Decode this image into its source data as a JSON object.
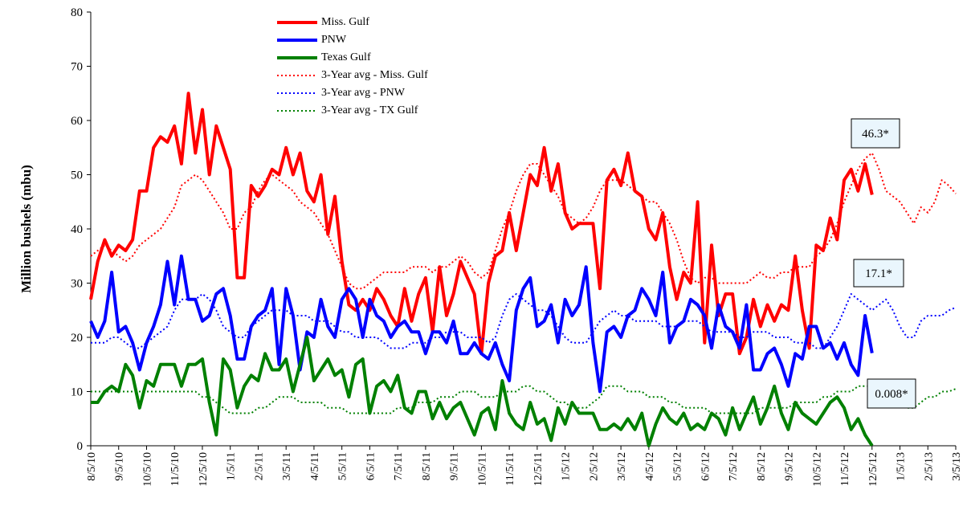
{
  "chart_data": {
    "type": "line",
    "y_label": "Million bushels (mbu)",
    "categories": [
      "8/5/10",
      null,
      null,
      null,
      "9/5/10",
      null,
      null,
      null,
      "10/5/10",
      null,
      null,
      null,
      "11/5/10",
      null,
      null,
      null,
      "12/5/10",
      null,
      null,
      null,
      "1/5/11",
      null,
      null,
      null,
      "2/5/11",
      null,
      null,
      null,
      "3/5/11",
      null,
      null,
      null,
      "4/5/11",
      null,
      null,
      null,
      "5/5/11",
      null,
      null,
      null,
      "6/5/11",
      null,
      null,
      null,
      "7/5/11",
      null,
      null,
      null,
      "8/5/11",
      null,
      null,
      null,
      "9/5/11",
      null,
      null,
      null,
      "10/5/11",
      null,
      null,
      null,
      "11/5/11",
      null,
      null,
      null,
      "12/5/11",
      null,
      null,
      null,
      "1/5/12",
      null,
      null,
      null,
      "2/5/12",
      null,
      null,
      null,
      "3/5/12",
      null,
      null,
      null,
      "4/5/12",
      null,
      null,
      null,
      "5/5/12",
      null,
      null,
      null,
      "6/5/12",
      null,
      null,
      null,
      "7/5/12",
      null,
      null,
      null,
      "8/5/12",
      null,
      null,
      null,
      "9/5/12",
      null,
      null,
      null,
      "10/5/12",
      null,
      null,
      null,
      "11/5/12",
      null,
      null,
      null,
      "12/5/12",
      null,
      null,
      null,
      "1/5/13",
      null,
      null,
      null,
      "2/5/13",
      null,
      null,
      null,
      "3/5/13"
    ],
    "ylim": [
      0,
      80
    ],
    "yticks": [
      0,
      10,
      20,
      30,
      40,
      50,
      60,
      70,
      80
    ],
    "grid": false,
    "series": [
      {
        "name": "Miss. Gulf",
        "color": "#ff0000",
        "style": "solid",
        "values": [
          27,
          34,
          38,
          35,
          37,
          36,
          38,
          47,
          47,
          55,
          57,
          56,
          59,
          52,
          65,
          54,
          62,
          50,
          59,
          55,
          51,
          31,
          31,
          48,
          46,
          48,
          51,
          50,
          55,
          50,
          54,
          47,
          45,
          50,
          39,
          46,
          34,
          26,
          25,
          27,
          25,
          29,
          27,
          24,
          22,
          29,
          23,
          28,
          31,
          21,
          33,
          24,
          28,
          34,
          31,
          28,
          17,
          30,
          35,
          36,
          43,
          36,
          43,
          50,
          48,
          55,
          47,
          52,
          43,
          40,
          41,
          41,
          41,
          29,
          49,
          51,
          48,
          54,
          47,
          46,
          40,
          38,
          43,
          33,
          27,
          32,
          30,
          45,
          19,
          37,
          24,
          28,
          28,
          17,
          20,
          27,
          22,
          26,
          23,
          26,
          25,
          35,
          25,
          18,
          37,
          36,
          42,
          38,
          49,
          51,
          47,
          52,
          46.3,
          null,
          null,
          null,
          null,
          null,
          null,
          null,
          null,
          null,
          null,
          null,
          null
        ]
      },
      {
        "name": "PNW",
        "color": "#0000ff",
        "style": "solid",
        "values": [
          23,
          20,
          23,
          32,
          21,
          22,
          19,
          14,
          19,
          22,
          26,
          34,
          26,
          35,
          27,
          27,
          23,
          24,
          28,
          29,
          24,
          16,
          16,
          22,
          24,
          25,
          29,
          15,
          29,
          24,
          14,
          21,
          20,
          27,
          22,
          20,
          27,
          29,
          27,
          20,
          27,
          24,
          23,
          20,
          22,
          23,
          21,
          21,
          17,
          21,
          21,
          19,
          23,
          17,
          17,
          19,
          17,
          16,
          19,
          15,
          12,
          25,
          29,
          31,
          22,
          23,
          26,
          19,
          27,
          24,
          26,
          33,
          19,
          10,
          21,
          22,
          20,
          24,
          25,
          29,
          27,
          24,
          32,
          19,
          22,
          23,
          27,
          26,
          24,
          18,
          26,
          22,
          21,
          18,
          26,
          14,
          14,
          17,
          18,
          15,
          11,
          17,
          16,
          22,
          22,
          18,
          19,
          16,
          19,
          15,
          13,
          24,
          17.1,
          null,
          null,
          null,
          null,
          null,
          null,
          null,
          null,
          null,
          null,
          null,
          null
        ]
      },
      {
        "name": "Texas Gulf",
        "color": "#008000",
        "style": "solid",
        "values": [
          8,
          8,
          10,
          11,
          10,
          15,
          13,
          7,
          12,
          11,
          15,
          15,
          15,
          11,
          15,
          15,
          16,
          8,
          2,
          16,
          14,
          7,
          11,
          13,
          12,
          17,
          14,
          14,
          16,
          10,
          15,
          20,
          12,
          14,
          16,
          13,
          14,
          9,
          15,
          16,
          6,
          11,
          12,
          10,
          13,
          7,
          6,
          10,
          10,
          5,
          8,
          5,
          7,
          8,
          5,
          2,
          6,
          7,
          3,
          12,
          6,
          4,
          3,
          8,
          4,
          5,
          1,
          7,
          4,
          8,
          6,
          6,
          6,
          3,
          3,
          4,
          3,
          5,
          3,
          6,
          0,
          4,
          7,
          5,
          4,
          6,
          3,
          4,
          3,
          6,
          5,
          2,
          7,
          3,
          6,
          9,
          4,
          7,
          11,
          6,
          3,
          8,
          6,
          5,
          4,
          6,
          8,
          9,
          7,
          3,
          5,
          2,
          0.008,
          null,
          null,
          null,
          null,
          null,
          null,
          null,
          null,
          null,
          null,
          null,
          null
        ]
      },
      {
        "name": "3-Year avg - Miss. Gulf",
        "color": "#ff0000",
        "style": "dotted",
        "values": [
          35,
          36,
          37,
          36,
          35,
          34,
          35,
          37,
          38,
          39,
          40,
          42,
          44,
          48,
          49,
          50,
          49,
          47,
          45,
          43,
          40,
          40,
          43,
          44,
          47,
          49,
          50,
          49,
          48,
          47,
          45,
          44,
          43,
          41,
          39,
          36,
          33,
          30,
          29,
          29,
          30,
          31,
          32,
          32,
          32,
          32,
          33,
          33,
          33,
          32,
          33,
          33,
          34,
          35,
          34,
          32,
          31,
          32,
          36,
          40,
          43,
          47,
          50,
          52,
          52,
          50,
          48,
          46,
          43,
          42,
          41,
          42,
          44,
          47,
          49,
          49,
          49,
          48,
          47,
          46,
          45,
          45,
          43,
          41,
          38,
          34,
          31,
          30,
          31,
          31,
          30,
          30,
          30,
          30,
          30,
          31,
          32,
          31,
          31,
          32,
          32,
          33,
          33,
          33,
          35,
          36,
          38,
          41,
          45,
          48,
          51,
          53,
          54,
          51,
          47,
          46,
          45,
          43,
          41,
          44,
          43,
          45,
          49,
          48,
          46.5
        ]
      },
      {
        "name": "3-Year avg - PNW",
        "color": "#0000ff",
        "style": "dotted",
        "values": [
          19,
          19,
          19,
          20,
          20,
          19,
          18,
          18,
          19,
          20,
          21,
          22,
          25,
          27,
          27,
          27,
          28,
          27,
          25,
          22,
          21,
          20,
          20,
          22,
          23,
          24,
          25,
          25,
          25,
          24,
          24,
          24,
          23,
          23,
          23,
          22,
          21,
          21,
          20,
          20,
          20,
          20,
          19,
          18,
          18,
          18,
          19,
          19,
          19,
          20,
          20,
          21,
          21,
          21,
          20,
          20,
          20,
          19,
          20,
          24,
          27,
          28,
          27,
          26,
          25,
          25,
          24,
          22,
          20,
          19,
          19,
          19,
          21,
          23,
          24,
          25,
          24,
          24,
          23,
          23,
          23,
          23,
          22,
          22,
          22,
          23,
          23,
          23,
          22,
          21,
          21,
          21,
          21,
          20,
          20,
          21,
          21,
          21,
          20,
          20,
          20,
          19,
          19,
          19,
          18,
          18,
          20,
          22,
          25,
          28,
          27,
          26,
          25,
          26,
          27,
          25,
          22,
          20,
          20,
          23,
          24,
          24,
          24,
          25,
          25.5
        ]
      },
      {
        "name": "3-Year avg - TX Gulf",
        "color": "#008000",
        "style": "dotted",
        "values": [
          10,
          10,
          10,
          10,
          10,
          10,
          10,
          10,
          10,
          10,
          10,
          10,
          10,
          10,
          10,
          10,
          9,
          9,
          8,
          7,
          6,
          6,
          6,
          6,
          7,
          7,
          8,
          9,
          9,
          9,
          8,
          8,
          8,
          8,
          7,
          7,
          7,
          6,
          6,
          6,
          6,
          6,
          6,
          6,
          7,
          7,
          7,
          8,
          8,
          8,
          9,
          9,
          9,
          10,
          10,
          10,
          9,
          9,
          9,
          10,
          10,
          10,
          11,
          11,
          10,
          10,
          9,
          8,
          8,
          7,
          7,
          7,
          8,
          9,
          11,
          11,
          11,
          10,
          10,
          10,
          9,
          9,
          9,
          8,
          8,
          7,
          7,
          7,
          7,
          6,
          6,
          6,
          6,
          6,
          6,
          6,
          7,
          7,
          7,
          7,
          7,
          8,
          8,
          8,
          8,
          9,
          9,
          10,
          10,
          10,
          11,
          11,
          11,
          10,
          9,
          8,
          8,
          7,
          7,
          8,
          9,
          9,
          10,
          10,
          10.5
        ]
      }
    ],
    "annotations": [
      "46.3*",
      "17.1*",
      "0.008*"
    ]
  }
}
